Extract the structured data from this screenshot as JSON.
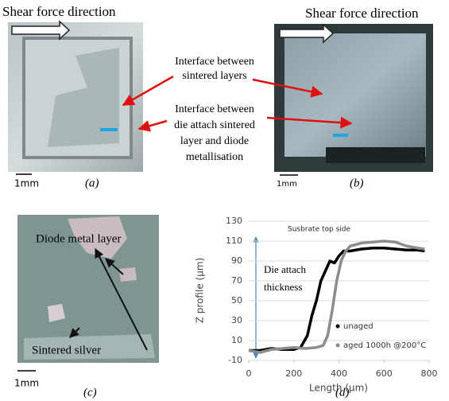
{
  "panels": {
    "a": {
      "title": "Shear force direction",
      "scale": "1mm",
      "caption": "(a)"
    },
    "b": {
      "title": "Shear force direction",
      "scale": "1mm",
      "caption": "(b)"
    },
    "c": {
      "top_label": "Diode metal layer",
      "bottom_label": "Sintered silver",
      "scale": "1mm",
      "caption": "(c)"
    },
    "d": {
      "caption": "(d)"
    }
  },
  "annotations": [
    {
      "lines": [
        "Interface between",
        "sintered layers"
      ]
    },
    {
      "lines": [
        "Interface between",
        "die attach sintered",
        "layer and diode",
        "metallisation"
      ]
    }
  ],
  "chart_data": {
    "type": "line",
    "xlabel": "Length (µm)",
    "ylabel": "Z profile (µm)",
    "top_note": "Susbrate top side",
    "arrow_note": [
      "Die attach",
      "thickness"
    ],
    "xlim": [
      0,
      800
    ],
    "xticks": [
      0,
      200,
      400,
      600,
      800
    ],
    "ylim": [
      -10,
      130
    ],
    "yticks": [
      -10,
      10,
      30,
      50,
      70,
      90,
      110,
      130
    ],
    "grid": true,
    "series": [
      {
        "name": "unaged",
        "color": "#000000",
        "x": [
          0,
          50,
          100,
          150,
          200,
          230,
          260,
          280,
          300,
          320,
          340,
          360,
          380,
          400,
          420,
          450,
          500,
          550,
          600,
          650,
          700,
          750,
          780
        ],
        "values": [
          0,
          0,
          2,
          1,
          1,
          3,
          15,
          35,
          50,
          70,
          80,
          90,
          88,
          95,
          100,
          100,
          102,
          103,
          103,
          102,
          101,
          101,
          100
        ]
      },
      {
        "name": "aged 1000h @200°C",
        "color": "#8c8c8c",
        "x": [
          0,
          50,
          100,
          200,
          250,
          300,
          330,
          350,
          370,
          390,
          410,
          430,
          450,
          500,
          550,
          600,
          650,
          700,
          750,
          780
        ],
        "values": [
          0,
          -2,
          1,
          3,
          2,
          3,
          5,
          15,
          40,
          70,
          90,
          100,
          105,
          108,
          109,
          110,
          109,
          105,
          103,
          102
        ]
      }
    ]
  }
}
